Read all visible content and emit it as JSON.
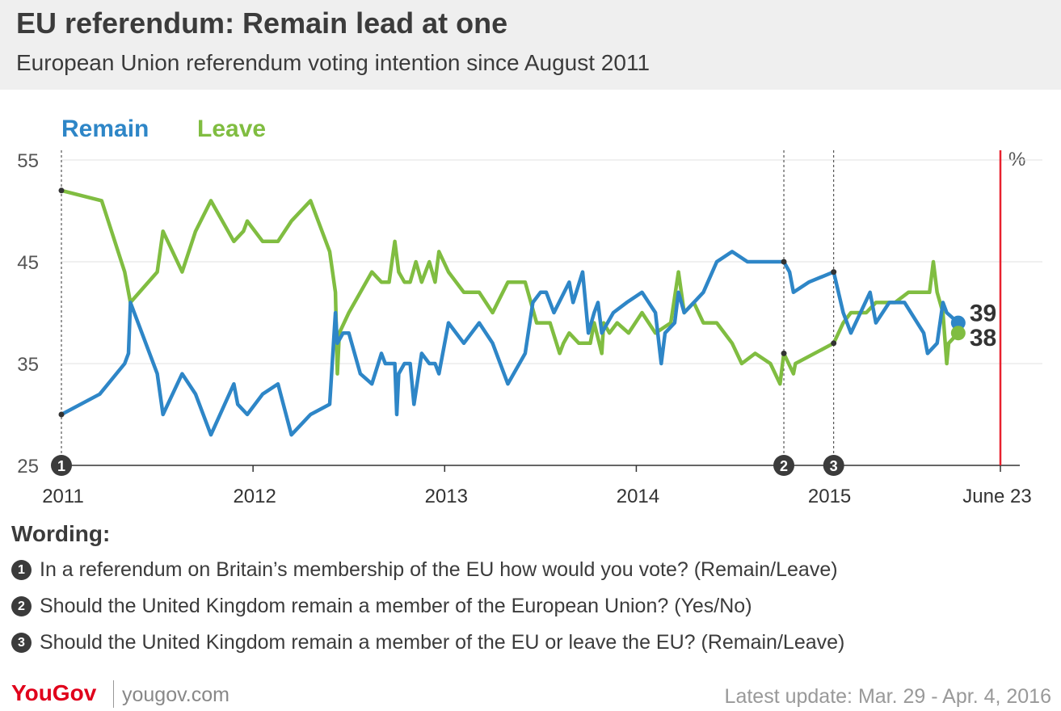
{
  "title": "EU referendum: Remain lead at one",
  "subtitle": "European Union referendum voting intention since August 2011",
  "wording": {
    "heading": "Wording:",
    "items": [
      {
        "marker": "1",
        "text": "In a referendum on Britain’s membership of the EU how would you vote? (Remain/Leave)"
      },
      {
        "marker": "2",
        "text": "Should the United Kingdom remain a member of the European Union? (Yes/No)"
      },
      {
        "marker": "3",
        "text": "Should the United Kingdom remain a member of the EU or leave the EU? (Remain/Leave)"
      }
    ]
  },
  "footer": {
    "brand": "YouGov",
    "url": "yougov.com",
    "update": "Latest update: Mar. 29 - Apr. 4, 2016"
  },
  "chart_data": {
    "type": "line",
    "unit_label": "%",
    "ylim": [
      25,
      55
    ],
    "xlim": [
      2011,
      2015.9
    ],
    "y_ticks": [
      25,
      35,
      45,
      55
    ],
    "x_ticks": [
      {
        "x": 2011,
        "label": "2011"
      },
      {
        "x": 2012,
        "label": "2012"
      },
      {
        "x": 2013,
        "label": "2013"
      },
      {
        "x": 2014,
        "label": "2014"
      },
      {
        "x": 2015,
        "label": "2015"
      },
      {
        "x": 2015.9,
        "label": "June 23"
      }
    ],
    "grid": true,
    "legend_position": "top-left",
    "colors": {
      "remain": "#2e86c7",
      "leave": "#80bd41",
      "referendum_line": "#e8212e",
      "marker": "#3b3b3b"
    },
    "wording_changes": [
      {
        "x": 2011,
        "marker": "1",
        "remain": 30,
        "leave": 52
      },
      {
        "x": 2014.77,
        "marker": "2",
        "remain": 45,
        "leave": 36
      },
      {
        "x": 2015.03,
        "marker": "3",
        "remain": 44,
        "leave": 37
      }
    ],
    "series": [
      {
        "name": "Remain",
        "color": "#2e86c7",
        "latest_label": "39",
        "points": [
          [
            2011,
            30
          ],
          [
            2011.2,
            32
          ],
          [
            2011.33,
            35
          ],
          [
            2011.35,
            36
          ],
          [
            2011.36,
            41
          ],
          [
            2011.5,
            34
          ],
          [
            2011.53,
            30
          ],
          [
            2011.63,
            34
          ],
          [
            2011.7,
            32
          ],
          [
            2011.78,
            28
          ],
          [
            2011.9,
            33
          ],
          [
            2011.92,
            31
          ],
          [
            2011.97,
            30
          ],
          [
            2012.05,
            32
          ],
          [
            2012.13,
            33
          ],
          [
            2012.2,
            28
          ],
          [
            2012.3,
            30
          ],
          [
            2012.4,
            31
          ],
          [
            2012.43,
            40
          ],
          [
            2012.44,
            37
          ],
          [
            2012.47,
            38
          ],
          [
            2012.5,
            38
          ],
          [
            2012.56,
            34
          ],
          [
            2012.62,
            33
          ],
          [
            2012.67,
            36
          ],
          [
            2012.69,
            35
          ],
          [
            2012.74,
            35
          ],
          [
            2012.75,
            30
          ],
          [
            2012.76,
            34
          ],
          [
            2012.79,
            35
          ],
          [
            2012.82,
            35
          ],
          [
            2012.84,
            31
          ],
          [
            2012.88,
            36
          ],
          [
            2012.92,
            35
          ],
          [
            2012.95,
            35
          ],
          [
            2012.97,
            34
          ],
          [
            2013.02,
            39
          ],
          [
            2013.1,
            37
          ],
          [
            2013.18,
            39
          ],
          [
            2013.25,
            37
          ],
          [
            2013.33,
            33
          ],
          [
            2013.42,
            36
          ],
          [
            2013.46,
            41
          ],
          [
            2013.5,
            42
          ],
          [
            2013.53,
            42
          ],
          [
            2013.57,
            40
          ],
          [
            2013.65,
            43
          ],
          [
            2013.67,
            41
          ],
          [
            2013.72,
            44
          ],
          [
            2013.75,
            38
          ],
          [
            2013.78,
            40
          ],
          [
            2013.8,
            41
          ],
          [
            2013.82,
            38
          ],
          [
            2013.88,
            40
          ],
          [
            2013.95,
            41
          ],
          [
            2014.03,
            42
          ],
          [
            2014.1,
            40
          ],
          [
            2014.13,
            35
          ],
          [
            2014.15,
            38
          ],
          [
            2014.2,
            39
          ],
          [
            2014.22,
            42
          ],
          [
            2014.25,
            40
          ],
          [
            2014.3,
            41
          ],
          [
            2014.35,
            42
          ],
          [
            2014.42,
            45
          ],
          [
            2014.5,
            46
          ],
          [
            2014.58,
            45
          ],
          [
            2014.77,
            45
          ],
          [
            2014.8,
            44
          ],
          [
            2014.82,
            42
          ],
          [
            2014.9,
            43
          ],
          [
            2015.03,
            44
          ],
          [
            2015.08,
            40
          ],
          [
            2015.12,
            38
          ],
          [
            2015.22,
            42
          ],
          [
            2015.25,
            39
          ],
          [
            2015.32,
            41
          ],
          [
            2015.4,
            41
          ],
          [
            2015.5,
            38
          ],
          [
            2015.52,
            36
          ],
          [
            2015.57,
            37
          ],
          [
            2015.6,
            41
          ],
          [
            2015.62,
            40
          ],
          [
            2015.68,
            39
          ]
        ]
      },
      {
        "name": "Leave",
        "color": "#80bd41",
        "latest_label": "38",
        "points": [
          [
            2011,
            52
          ],
          [
            2011.21,
            51
          ],
          [
            2011.33,
            44
          ],
          [
            2011.36,
            41
          ],
          [
            2011.5,
            44
          ],
          [
            2011.53,
            48
          ],
          [
            2011.63,
            44
          ],
          [
            2011.7,
            48
          ],
          [
            2011.78,
            51
          ],
          [
            2011.9,
            47
          ],
          [
            2011.95,
            48
          ],
          [
            2011.97,
            49
          ],
          [
            2012.05,
            47
          ],
          [
            2012.13,
            47
          ],
          [
            2012.2,
            49
          ],
          [
            2012.3,
            51
          ],
          [
            2012.4,
            46
          ],
          [
            2012.43,
            42
          ],
          [
            2012.44,
            34
          ],
          [
            2012.45,
            38
          ],
          [
            2012.5,
            40
          ],
          [
            2012.62,
            44
          ],
          [
            2012.67,
            43
          ],
          [
            2012.71,
            43
          ],
          [
            2012.74,
            47
          ],
          [
            2012.76,
            44
          ],
          [
            2012.79,
            43
          ],
          [
            2012.82,
            43
          ],
          [
            2012.85,
            45
          ],
          [
            2012.88,
            43
          ],
          [
            2012.92,
            45
          ],
          [
            2012.95,
            43
          ],
          [
            2012.97,
            46
          ],
          [
            2013.02,
            44
          ],
          [
            2013.1,
            42
          ],
          [
            2013.18,
            42
          ],
          [
            2013.25,
            40
          ],
          [
            2013.33,
            43
          ],
          [
            2013.42,
            43
          ],
          [
            2013.48,
            39
          ],
          [
            2013.55,
            39
          ],
          [
            2013.6,
            36
          ],
          [
            2013.62,
            37
          ],
          [
            2013.65,
            38
          ],
          [
            2013.7,
            37
          ],
          [
            2013.76,
            37
          ],
          [
            2013.78,
            39
          ],
          [
            2013.82,
            36
          ],
          [
            2013.83,
            39
          ],
          [
            2013.86,
            38
          ],
          [
            2013.9,
            39
          ],
          [
            2013.96,
            38
          ],
          [
            2014.03,
            40
          ],
          [
            2014.1,
            38
          ],
          [
            2014.18,
            39
          ],
          [
            2014.22,
            44
          ],
          [
            2014.25,
            40
          ],
          [
            2014.3,
            41
          ],
          [
            2014.35,
            39
          ],
          [
            2014.42,
            39
          ],
          [
            2014.5,
            37
          ],
          [
            2014.55,
            35
          ],
          [
            2014.62,
            36
          ],
          [
            2014.7,
            35
          ],
          [
            2014.75,
            33
          ],
          [
            2014.77,
            36
          ],
          [
            2014.82,
            34
          ],
          [
            2014.83,
            35
          ],
          [
            2015.03,
            37
          ],
          [
            2015.08,
            39
          ],
          [
            2015.12,
            40
          ],
          [
            2015.2,
            40
          ],
          [
            2015.25,
            41
          ],
          [
            2015.35,
            41
          ],
          [
            2015.42,
            42
          ],
          [
            2015.53,
            42
          ],
          [
            2015.55,
            45
          ],
          [
            2015.57,
            42
          ],
          [
            2015.6,
            40
          ],
          [
            2015.62,
            35
          ],
          [
            2015.63,
            37
          ],
          [
            2015.68,
            38
          ]
        ]
      }
    ]
  }
}
